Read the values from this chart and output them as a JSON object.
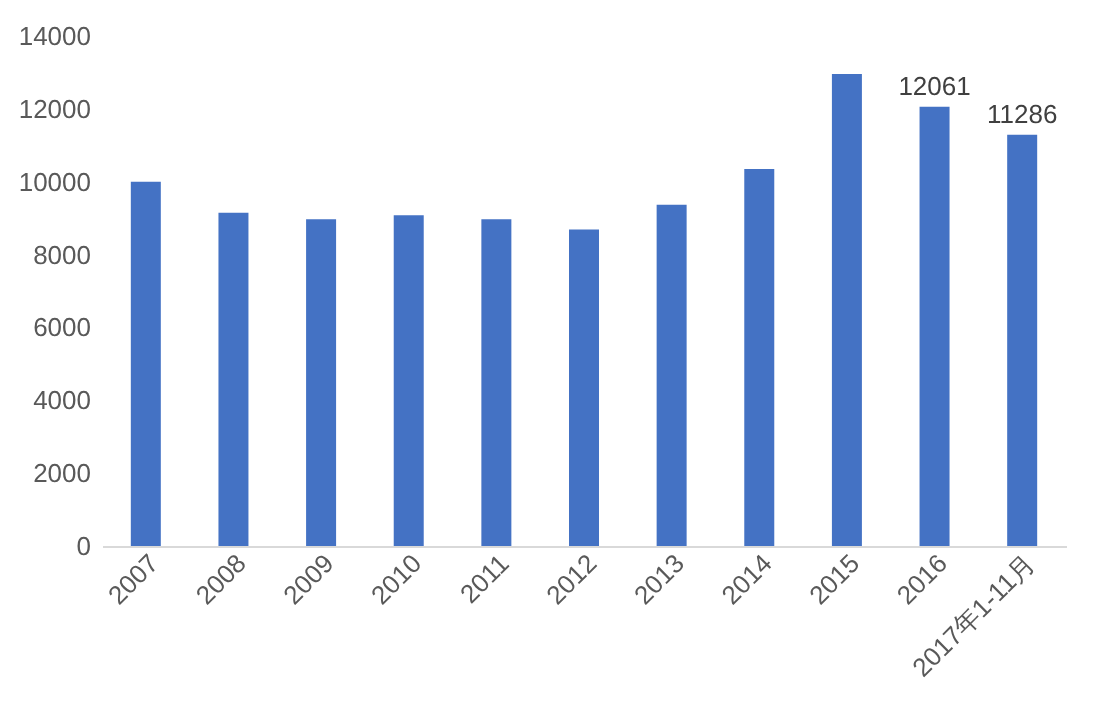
{
  "chart_data": {
    "type": "bar",
    "categories": [
      "2007",
      "2008",
      "2009",
      "2010",
      "2011",
      "2012",
      "2013",
      "2014",
      "2015",
      "2016",
      "2017年1-11月"
    ],
    "values": [
      10000,
      9150,
      8970,
      9080,
      8970,
      8690,
      9370,
      10350,
      12960,
      12061,
      11286
    ],
    "value_labels": [
      null,
      null,
      null,
      null,
      null,
      null,
      null,
      null,
      null,
      "12061",
      "11286"
    ],
    "color": "#4472c4",
    "ylim": [
      0,
      14000
    ],
    "yticks": [
      0,
      2000,
      4000,
      6000,
      8000,
      10000,
      12000,
      14000
    ],
    "grid": false
  }
}
